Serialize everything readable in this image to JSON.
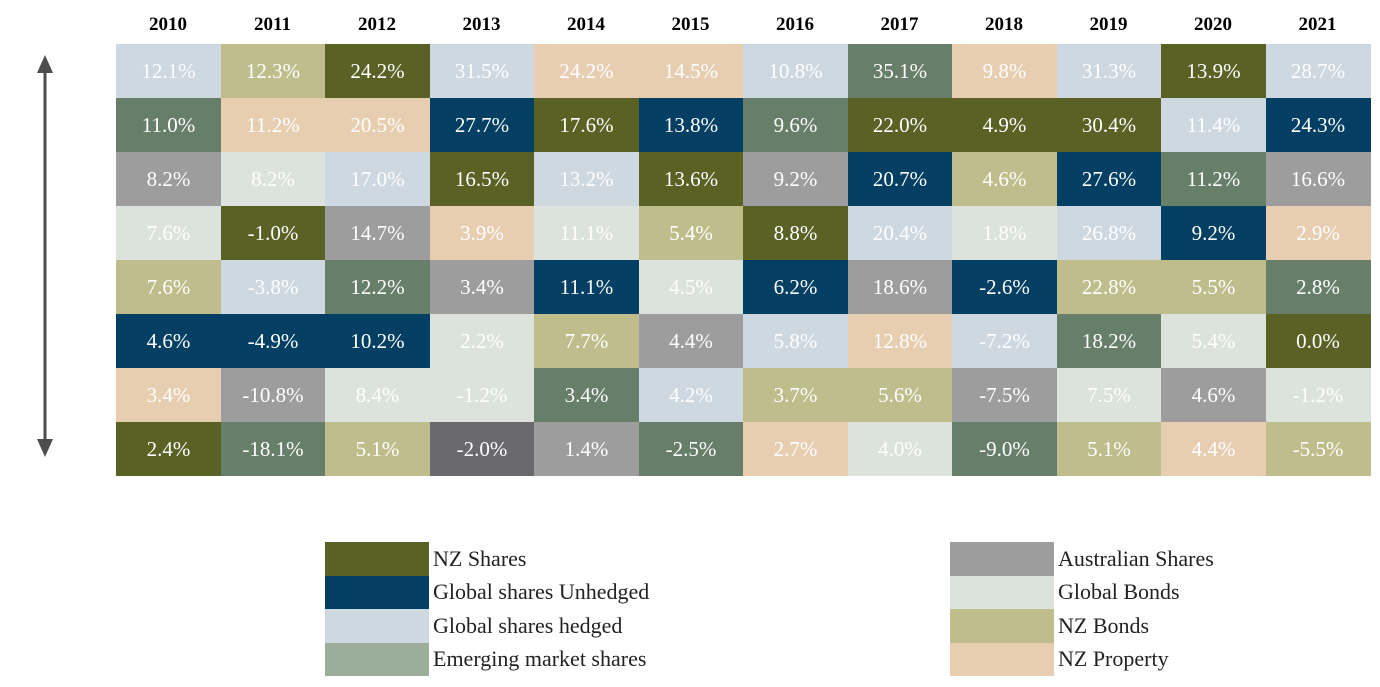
{
  "chart_data": {
    "type": "table",
    "title": "",
    "years": [
      "2010",
      "2011",
      "2012",
      "2013",
      "2014",
      "2015",
      "2016",
      "2017",
      "2018",
      "2019",
      "2020",
      "2021"
    ],
    "asset_classes": {
      "nz": {
        "name": "NZ Shares",
        "color": "#5a6125",
        "text": "#ffffff"
      },
      "gsu": {
        "name": "Global shares Unhedged",
        "color": "#023f62",
        "text": "#ffffff"
      },
      "gsh": {
        "name": "Global shares hedged",
        "color": "#cdd8e1",
        "text": "#ffffff"
      },
      "em": {
        "name": "Emerging market shares",
        "color": "#677e69",
        "text": "#ffffff"
      },
      "au": {
        "name": "Australian Shares",
        "color": "#9d9d9d",
        "text": "#ffffff"
      },
      "gb": {
        "name": "Global Bonds",
        "color": "#dce2dc",
        "text": "#ffffff"
      },
      "nzb": {
        "name": "NZ Bonds",
        "color": "#c0bd8c",
        "text": "#ffffff"
      },
      "nzp": {
        "name": "NZ Property",
        "color": "#e8ceb1",
        "text": "#ffffff"
      },
      "dark": {
        "name": "",
        "color": "#6a6a6e",
        "text": "#ffffff"
      }
    },
    "legend_left": [
      "nz",
      "gsu",
      "gsh",
      "em"
    ],
    "legend_right": [
      "au",
      "gb",
      "nzb",
      "nzp"
    ],
    "legend_em_color": "#9aae9a",
    "columns": [
      [
        [
          "gsh",
          "12.1%"
        ],
        [
          "em",
          "11.0%"
        ],
        [
          "au",
          "8.2%"
        ],
        [
          "gb",
          "7.6%"
        ],
        [
          "nzb",
          "7.6%"
        ],
        [
          "gsu",
          "4.6%"
        ],
        [
          "nzp",
          "3.4%"
        ],
        [
          "nz",
          "2.4%"
        ]
      ],
      [
        [
          "nzb",
          "12.3%"
        ],
        [
          "nzp",
          "11.2%"
        ],
        [
          "gb",
          "8.2%"
        ],
        [
          "nz",
          "-1.0%"
        ],
        [
          "gsh",
          "-3.8%"
        ],
        [
          "gsu",
          "-4.9%"
        ],
        [
          "au",
          "-10.8%"
        ],
        [
          "em",
          "-18.1%"
        ]
      ],
      [
        [
          "nz",
          "24.2%"
        ],
        [
          "nzp",
          "20.5%"
        ],
        [
          "gsh",
          "17.0%"
        ],
        [
          "au",
          "14.7%"
        ],
        [
          "em",
          "12.2%"
        ],
        [
          "gsu",
          "10.2%"
        ],
        [
          "gb",
          "8.4%"
        ],
        [
          "nzb",
          "5.1%"
        ]
      ],
      [
        [
          "gsh",
          "31.5%"
        ],
        [
          "gsu",
          "27.7%"
        ],
        [
          "nz",
          "16.5%"
        ],
        [
          "nzp",
          "3.9%"
        ],
        [
          "au",
          "3.4%"
        ],
        [
          "gb",
          "2.2%"
        ],
        [
          "gb",
          "-1.2%"
        ],
        [
          "dark",
          "-2.0%"
        ]
      ],
      [
        [
          "nzp",
          "24.2%"
        ],
        [
          "nz",
          "17.6%"
        ],
        [
          "gsh",
          "13.2%"
        ],
        [
          "gb",
          "11.1%"
        ],
        [
          "gsu",
          "11.1%"
        ],
        [
          "nzb",
          "7.7%"
        ],
        [
          "em",
          "3.4%"
        ],
        [
          "au",
          "1.4%"
        ]
      ],
      [
        [
          "nzp",
          "14.5%"
        ],
        [
          "gsu",
          "13.8%"
        ],
        [
          "nz",
          "13.6%"
        ],
        [
          "nzb",
          "5.4%"
        ],
        [
          "gb",
          "4.5%"
        ],
        [
          "au",
          "4.4%"
        ],
        [
          "gsh",
          "4.2%"
        ],
        [
          "em",
          "-2.5%"
        ]
      ],
      [
        [
          "gsh",
          "10.8%"
        ],
        [
          "em",
          "9.6%"
        ],
        [
          "au",
          "9.2%"
        ],
        [
          "nz",
          "8.8%"
        ],
        [
          "gsu",
          "6.2%"
        ],
        [
          "gsh",
          "5.8%"
        ],
        [
          "nzb",
          "3.7%"
        ],
        [
          "nzp",
          "2.7%"
        ]
      ],
      [
        [
          "em",
          "35.1%"
        ],
        [
          "nz",
          "22.0%"
        ],
        [
          "gsu",
          "20.7%"
        ],
        [
          "gsh",
          "20.4%"
        ],
        [
          "au",
          "18.6%"
        ],
        [
          "nzp",
          "12.8%"
        ],
        [
          "nzb",
          "5.6%"
        ],
        [
          "gb",
          "4.0%"
        ]
      ],
      [
        [
          "nzp",
          "9.8%"
        ],
        [
          "nz",
          "4.9%"
        ],
        [
          "nzb",
          "4.6%"
        ],
        [
          "gb",
          "1.8%"
        ],
        [
          "gsu",
          "-2.6%"
        ],
        [
          "gsh",
          "-7.2%"
        ],
        [
          "au",
          "-7.5%"
        ],
        [
          "em",
          "-9.0%"
        ]
      ],
      [
        [
          "gsh",
          "31.3%"
        ],
        [
          "nz",
          "30.4%"
        ],
        [
          "gsu",
          "27.6%"
        ],
        [
          "gsh",
          "26.8%"
        ],
        [
          "nzb",
          "22.8%"
        ],
        [
          "em",
          "18.2%"
        ],
        [
          "gb",
          "7.5%"
        ],
        [
          "nzb",
          "5.1%"
        ]
      ],
      [
        [
          "nz",
          "13.9%"
        ],
        [
          "gsh",
          "11.4%"
        ],
        [
          "em",
          "11.2%"
        ],
        [
          "gsu",
          "9.2%"
        ],
        [
          "nzb",
          "5.5%"
        ],
        [
          "gb",
          "5.4%"
        ],
        [
          "au",
          "4.6%"
        ],
        [
          "nzp",
          "4.4%"
        ]
      ],
      [
        [
          "gsh",
          "28.7%"
        ],
        [
          "gsu",
          "24.3%"
        ],
        [
          "au",
          "16.6%"
        ],
        [
          "nzp",
          "2.9%"
        ],
        [
          "em",
          "2.8%"
        ],
        [
          "nz",
          "0.0%"
        ],
        [
          "gb",
          "-1.2%"
        ],
        [
          "nzb",
          "-5.5%"
        ]
      ]
    ]
  }
}
